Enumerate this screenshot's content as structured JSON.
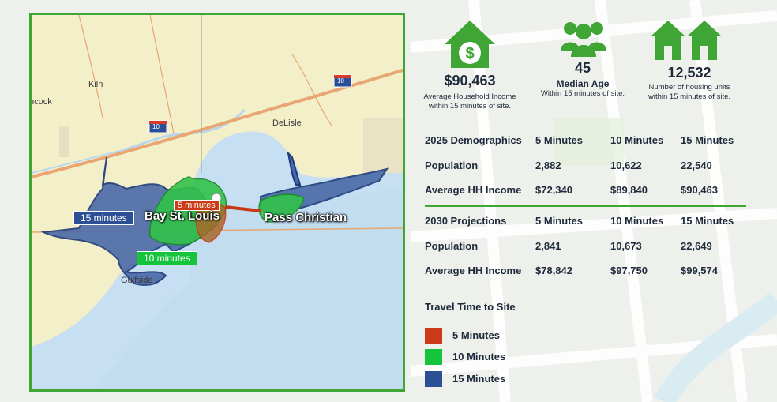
{
  "map": {
    "places": [
      "Kiln",
      "ncock",
      "DeLisle",
      "Gulfside"
    ],
    "highway_shields": [
      "10",
      "10"
    ],
    "regions": [
      "Bay St. Louis",
      "Pass Christian"
    ],
    "tags": {
      "t15": "15 minutes",
      "t10": "10 minutes",
      "t5": "5 minutes"
    }
  },
  "stats": [
    {
      "value": "$90,463",
      "label": "",
      "sub1": "Average Household Income",
      "sub2": "within 15 minutes of site.",
      "icon": "house-dollar-icon"
    },
    {
      "value": "45",
      "label": "Median Age",
      "sub1": "Within 15 minutes of site.",
      "sub2": "",
      "icon": "people-icon"
    },
    {
      "value": "12,532",
      "label": "",
      "sub1": "Number of housing units",
      "sub2": "within 15 minutes of site.",
      "icon": "houses-icon"
    }
  ],
  "demo2025": {
    "header": [
      "2025 Demographics",
      "5 Minutes",
      "10 Minutes",
      "15 Minutes"
    ],
    "rows": [
      [
        "Population",
        "2,882",
        "10,622",
        "22,540"
      ],
      [
        "Average HH Income",
        "$72,340",
        "$89,840",
        "$90,463"
      ]
    ]
  },
  "proj2030": {
    "header": [
      "2030 Projections",
      "5 Minutes",
      "10 Minutes",
      "15 Minutes"
    ],
    "rows": [
      [
        "Population",
        "2,841",
        "10,673",
        "22,649"
      ],
      [
        "Average HH Income",
        "$78,842",
        "$97,750",
        "$99,574"
      ]
    ]
  },
  "legend": {
    "title": "Travel Time to Site",
    "items": [
      {
        "label": "5 Minutes",
        "color": "#cc3b17"
      },
      {
        "label": "10 Minutes",
        "color": "#16c43b"
      },
      {
        "label": "15 Minutes",
        "color": "#2d4f96"
      }
    ]
  },
  "colors": {
    "accent": "#3fa535",
    "water": "#c7dff2",
    "land": "#f3efc8"
  }
}
